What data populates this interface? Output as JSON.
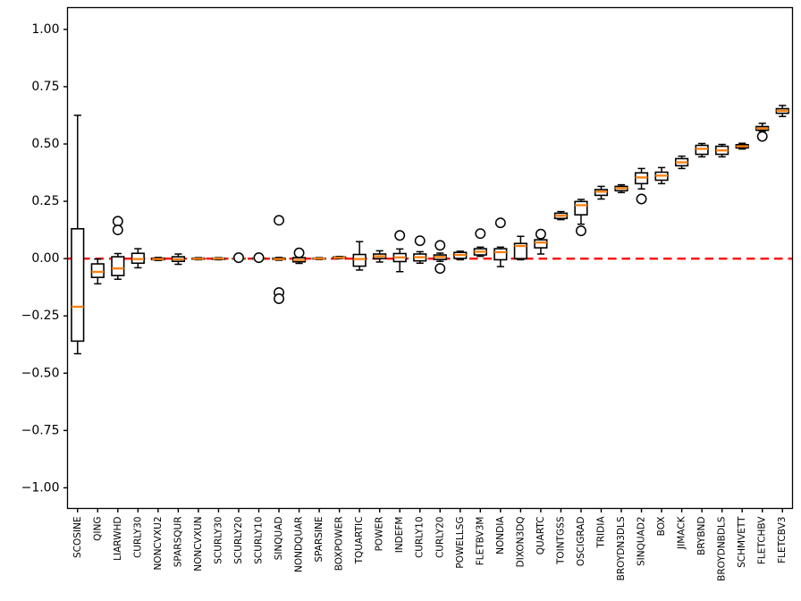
{
  "figure": {
    "background": "#ffffff",
    "title": ""
  },
  "chart_data": {
    "type": "boxplot",
    "title": "",
    "xlabel": "",
    "ylabel": "",
    "grid": false,
    "legend": null,
    "ylim": [
      -1.09,
      1.095
    ],
    "y_ticks": [
      -1.0,
      -0.75,
      -0.5,
      -0.25,
      0.0,
      0.25,
      0.5,
      0.75,
      1.0
    ],
    "reference_line": {
      "y": 0.0,
      "color": "#ff0000",
      "style": "dashed"
    },
    "colors": {
      "box_edge": "#000000",
      "median": "#ff7f0e",
      "flier_edge": "#000000",
      "axis": "#000000"
    },
    "categories": [
      "SCOSINE",
      "QING",
      "LIARWHD",
      "CURLY30",
      "NONCVXU2",
      "SPARSQUR",
      "NONCVXUN",
      "SCURLY30",
      "SCURLY20",
      "SCURLY10",
      "SINQUAD",
      "NONDQUAR",
      "SPARSINE",
      "BOXPOWER",
      "TQUARTIC",
      "POWER",
      "INDEFM",
      "CURLY10",
      "CURLY20",
      "POWELLSG",
      "FLETBV3M",
      "NONDIA",
      "DIXON3DQ",
      "QUARTC",
      "TOINTGSS",
      "OSCIGRAD",
      "TRIDIA",
      "BROYDN3DLS",
      "SINQUAD2",
      "BOX",
      "JIMACK",
      "BRYBND",
      "BROYDNBDLS",
      "SCHMVETT",
      "FLETCHBV",
      "FLETCBV3"
    ],
    "boxes": [
      {
        "label": "SCOSINE",
        "whislo": -0.415,
        "q1": -0.36,
        "med": -0.21,
        "q3": 0.13,
        "whishi": 0.625,
        "fliers": []
      },
      {
        "label": "QING",
        "whislo": -0.11,
        "q1": -0.082,
        "med": -0.058,
        "q3": -0.023,
        "whishi": -0.002,
        "fliers": []
      },
      {
        "label": "LIARWHD",
        "whislo": -0.09,
        "q1": -0.074,
        "med": -0.043,
        "q3": 0.008,
        "whishi": 0.022,
        "fliers": [
          0.163,
          0.125
        ]
      },
      {
        "label": "CURLY30",
        "whislo": -0.04,
        "q1": -0.02,
        "med": -0.002,
        "q3": 0.023,
        "whishi": 0.043,
        "fliers": []
      },
      {
        "label": "NONCVXU2",
        "whislo": -0.008,
        "q1": -0.005,
        "med": -0.002,
        "q3": 0.002,
        "whishi": 0.005,
        "fliers": []
      },
      {
        "label": "SPARSQUR",
        "whislo": -0.025,
        "q1": -0.012,
        "med": -0.003,
        "q3": 0.008,
        "whishi": 0.02,
        "fliers": []
      },
      {
        "label": "NONCVXUN",
        "whislo": -0.005,
        "q1": -0.003,
        "med": -0.001,
        "q3": 0.002,
        "whishi": 0.004,
        "fliers": []
      },
      {
        "label": "SCURLY30",
        "whislo": -0.005,
        "q1": -0.003,
        "med": 0.0,
        "q3": 0.002,
        "whishi": 0.004,
        "fliers": []
      },
      {
        "label": "SCURLY20",
        "whislo": -0.004,
        "q1": -0.002,
        "med": 0.0,
        "q3": 0.002,
        "whishi": 0.004,
        "fliers": [
          0.004
        ]
      },
      {
        "label": "SCURLY10",
        "whislo": -0.004,
        "q1": -0.002,
        "med": 0.0,
        "q3": 0.002,
        "whishi": 0.004,
        "fliers": [
          0.004
        ]
      },
      {
        "label": "SINQUAD",
        "whislo": -0.007,
        "q1": -0.004,
        "med": -0.002,
        "q3": 0.002,
        "whishi": 0.005,
        "fliers": [
          0.167,
          -0.148,
          -0.175
        ]
      },
      {
        "label": "NONDQUAR",
        "whislo": -0.021,
        "q1": -0.014,
        "med": -0.006,
        "q3": 0.004,
        "whishi": 0.01,
        "fliers": [
          0.025
        ]
      },
      {
        "label": "SPARSINE",
        "whislo": -0.004,
        "q1": -0.002,
        "med": 0.0,
        "q3": 0.002,
        "whishi": 0.004,
        "fliers": []
      },
      {
        "label": "BOXPOWER",
        "whislo": 0.0,
        "q1": 0.002,
        "med": 0.004,
        "q3": 0.007,
        "whishi": 0.009,
        "fliers": []
      },
      {
        "label": "TQUARTIC",
        "whislo": -0.05,
        "q1": -0.033,
        "med": -0.002,
        "q3": 0.018,
        "whishi": 0.074,
        "fliers": []
      },
      {
        "label": "POWER",
        "whislo": -0.015,
        "q1": 0.0,
        "med": 0.01,
        "q3": 0.02,
        "whishi": 0.034,
        "fliers": []
      },
      {
        "label": "INDEFM",
        "whislo": -0.057,
        "q1": -0.013,
        "med": 0.005,
        "q3": 0.022,
        "whishi": 0.042,
        "fliers": [
          0.101
        ]
      },
      {
        "label": "CURLY10",
        "whislo": -0.02,
        "q1": -0.01,
        "med": 0.006,
        "q3": 0.02,
        "whishi": 0.03,
        "fliers": [
          0.078
        ]
      },
      {
        "label": "CURLY20",
        "whislo": -0.012,
        "q1": -0.004,
        "med": 0.007,
        "q3": 0.016,
        "whishi": 0.024,
        "fliers": [
          0.058,
          -0.043
        ]
      },
      {
        "label": "POWELLSG",
        "whislo": -0.005,
        "q1": 0.001,
        "med": 0.016,
        "q3": 0.027,
        "whishi": 0.032,
        "fliers": []
      },
      {
        "label": "FLETBV3M",
        "whislo": 0.01,
        "q1": 0.016,
        "med": 0.03,
        "q3": 0.043,
        "whishi": 0.05,
        "fliers": [
          0.109
        ]
      },
      {
        "label": "NONDIA",
        "whislo": -0.035,
        "q1": -0.005,
        "med": 0.028,
        "q3": 0.043,
        "whishi": 0.05,
        "fliers": [
          0.156
        ]
      },
      {
        "label": "DIXON3DQ",
        "whislo": -0.005,
        "q1": 0.0,
        "med": 0.055,
        "q3": 0.066,
        "whishi": 0.097,
        "fliers": []
      },
      {
        "label": "QUARTC",
        "whislo": 0.02,
        "q1": 0.047,
        "med": 0.07,
        "q3": 0.082,
        "whishi": 0.09,
        "fliers": [
          0.107
        ]
      },
      {
        "label": "TOINTGSS",
        "whislo": 0.17,
        "q1": 0.175,
        "med": 0.187,
        "q3": 0.198,
        "whishi": 0.205,
        "fliers": []
      },
      {
        "label": "OSCIGRAD",
        "whislo": 0.15,
        "q1": 0.191,
        "med": 0.233,
        "q3": 0.249,
        "whishi": 0.258,
        "fliers": [
          0.121
        ]
      },
      {
        "label": "TRIDIA",
        "whislo": 0.26,
        "q1": 0.276,
        "med": 0.292,
        "q3": 0.301,
        "whishi": 0.315,
        "fliers": []
      },
      {
        "label": "BROYDN3DLS",
        "whislo": 0.288,
        "q1": 0.296,
        "med": 0.307,
        "q3": 0.315,
        "whishi": 0.322,
        "fliers": []
      },
      {
        "label": "SINQUAD2",
        "whislo": 0.304,
        "q1": 0.327,
        "med": 0.354,
        "q3": 0.374,
        "whishi": 0.393,
        "fliers": [
          0.26
        ]
      },
      {
        "label": "BOX",
        "whislo": 0.327,
        "q1": 0.342,
        "med": 0.362,
        "q3": 0.377,
        "whishi": 0.397,
        "fliers": []
      },
      {
        "label": "JIMACK",
        "whislo": 0.393,
        "q1": 0.405,
        "med": 0.42,
        "q3": 0.436,
        "whishi": 0.447,
        "fliers": []
      },
      {
        "label": "BRYBND",
        "whislo": 0.444,
        "q1": 0.455,
        "med": 0.479,
        "q3": 0.494,
        "whishi": 0.502,
        "fliers": []
      },
      {
        "label": "BROYDNBDLS",
        "whislo": 0.444,
        "q1": 0.455,
        "med": 0.472,
        "q3": 0.49,
        "whishi": 0.498,
        "fliers": []
      },
      {
        "label": "SCHMVETT",
        "whislo": 0.478,
        "q1": 0.483,
        "med": 0.49,
        "q3": 0.497,
        "whishi": 0.503,
        "fliers": []
      },
      {
        "label": "FLETCHBV",
        "whislo": 0.556,
        "q1": 0.56,
        "med": 0.568,
        "q3": 0.576,
        "whishi": 0.59,
        "fliers": [
          0.533
        ]
      },
      {
        "label": "FLETCBV3",
        "whislo": 0.62,
        "q1": 0.634,
        "med": 0.645,
        "q3": 0.654,
        "whishi": 0.668,
        "fliers": []
      }
    ]
  }
}
